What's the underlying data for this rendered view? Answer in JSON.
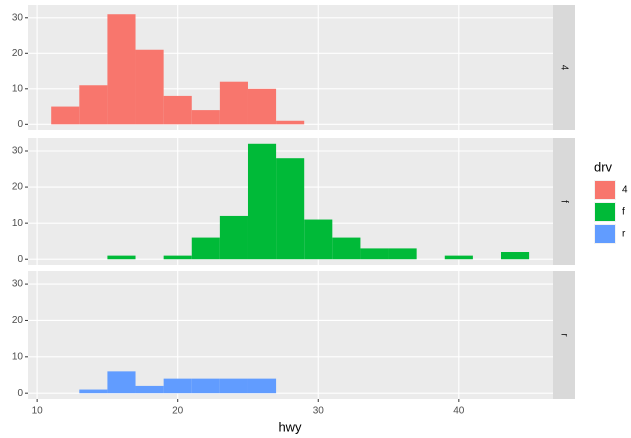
{
  "chart_data": {
    "type": "histogram",
    "xlabel": "hwy",
    "legend_title": "drv",
    "bins": [
      11,
      13,
      15,
      17,
      19,
      21,
      23,
      25,
      27,
      29,
      31,
      33,
      35,
      37,
      39,
      41,
      43,
      45
    ],
    "xlim": [
      9.35,
      46.7
    ],
    "xticks": [
      10,
      20,
      30,
      40
    ],
    "ylim": [
      -1.6,
      33.6
    ],
    "yticks": [
      0,
      10,
      20,
      30
    ],
    "grid": true,
    "series": [
      {
        "name": "4",
        "color": "#f8766d",
        "values": [
          5,
          11,
          31,
          21,
          8,
          4,
          12,
          10,
          1,
          0,
          0,
          0,
          0,
          0,
          0,
          0,
          0
        ]
      },
      {
        "name": "f",
        "color": "#00ba38",
        "values": [
          0,
          0,
          1,
          0,
          1,
          6,
          12,
          32,
          28,
          11,
          6,
          3,
          3,
          0,
          1,
          0,
          2
        ]
      },
      {
        "name": "r",
        "color": "#619cff",
        "values": [
          0,
          1,
          6,
          2,
          4,
          4,
          4,
          4,
          0,
          0,
          0,
          0,
          0,
          0,
          0,
          0,
          0
        ]
      }
    ]
  }
}
